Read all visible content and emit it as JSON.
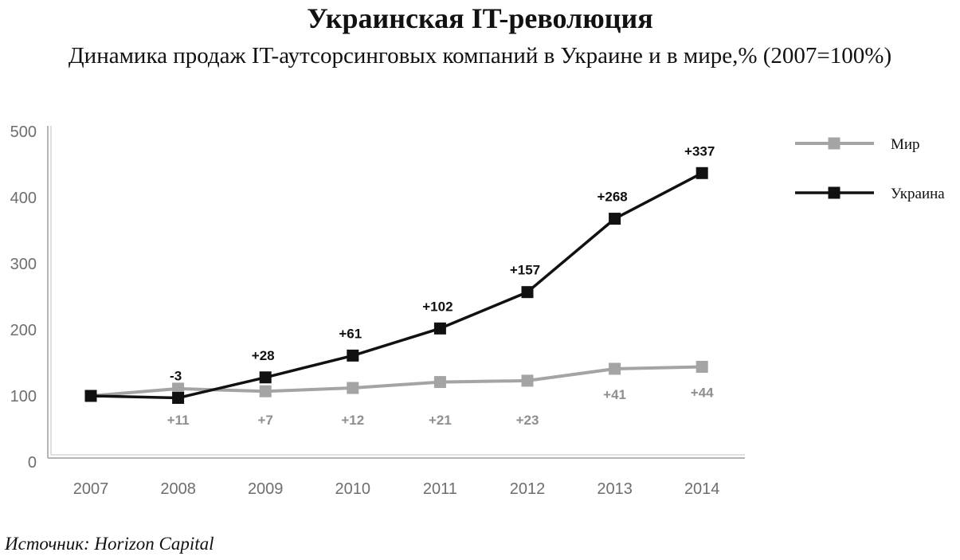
{
  "chart_data": {
    "type": "line",
    "title": "Украинская IT-революция",
    "subtitle": "Динамика продаж IT-аутсорсинговых компаний в Украине и в мире,% (2007=100%)",
    "categories": [
      "2007",
      "2008",
      "2009",
      "2010",
      "2011",
      "2012",
      "2013",
      "2014"
    ],
    "y_ticks": [
      "500",
      "400",
      "300",
      "200",
      "100",
      "0"
    ],
    "ylim": [
      0,
      500
    ],
    "grid": false,
    "legend_position": "right",
    "series": [
      {
        "name": "Мир",
        "color": "#a4a4a4",
        "marker": "square",
        "values": [
          100,
          111,
          107,
          112,
          121,
          123,
          141,
          144
        ],
        "labels": [
          "",
          "+11",
          "+7",
          "+12",
          "+21",
          "+23",
          "+41",
          "+44"
        ]
      },
      {
        "name": "Украина",
        "color": "#111111",
        "marker": "square",
        "values": [
          100,
          97,
          128,
          161,
          202,
          257,
          368,
          437
        ],
        "labels": [
          "",
          "-3",
          "+28",
          "+61",
          "+102",
          "+157",
          "+268",
          "+337"
        ]
      }
    ]
  },
  "source": "Источник: Horizon Capital"
}
